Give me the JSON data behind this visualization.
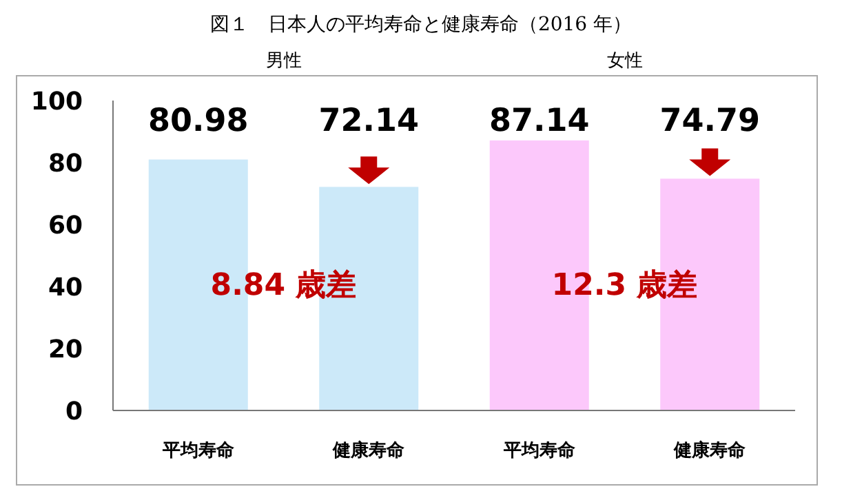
{
  "chart_data": {
    "type": "bar",
    "title": "図１　日本人の平均寿命と健康寿命（2016 年）",
    "categories": [
      "平均寿命",
      "健康寿命",
      "平均寿命",
      "健康寿命"
    ],
    "values": [
      80.98,
      72.14,
      87.14,
      74.79
    ],
    "colors": [
      "#cce9f9",
      "#cce9f9",
      "#fcc8fb",
      "#fcc8fb"
    ],
    "ylim": [
      0,
      100
    ],
    "yticks": [
      0,
      20,
      40,
      60,
      80,
      100
    ],
    "data_labels": true,
    "grid": false,
    "annotations": [
      "男性",
      "女性",
      "8.84 歳差",
      "12.3 歳差"
    ]
  }
}
